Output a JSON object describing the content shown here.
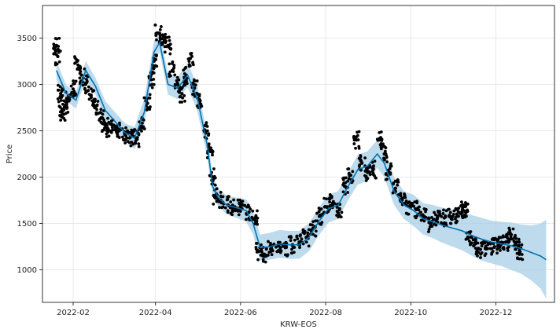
{
  "chart_data": {
    "type": "line",
    "xlabel": "KRW-EOS",
    "ylabel": "Price",
    "xlim": [
      "2022-01-10",
      "2023-01-12"
    ],
    "ylim": [
      650,
      3850
    ],
    "x_ticks": [
      "2022-02",
      "2022-04",
      "2022-06",
      "2022-08",
      "2022-10",
      "2022-12"
    ],
    "y_ticks": [
      1000,
      1500,
      2000,
      2500,
      3000,
      3500
    ],
    "grid": true,
    "colors": {
      "actual": "#000000",
      "forecast": "#0072B2",
      "interval": "#a7cfe6"
    },
    "series": [
      {
        "role": "forecast",
        "x": [
          "2022-01-20",
          "2022-01-27",
          "2022-02-03",
          "2022-02-10",
          "2022-02-17",
          "2022-02-24",
          "2022-03-03",
          "2022-03-10",
          "2022-03-17",
          "2022-03-24",
          "2022-03-31",
          "2022-04-04",
          "2022-04-10",
          "2022-04-17",
          "2022-04-24",
          "2022-05-01",
          "2022-05-08",
          "2022-05-12",
          "2022-05-16",
          "2022-05-22",
          "2022-05-29",
          "2022-06-05",
          "2022-06-10",
          "2022-06-15",
          "2022-06-22",
          "2022-06-29",
          "2022-07-06",
          "2022-07-13",
          "2022-07-20",
          "2022-07-27",
          "2022-08-03",
          "2022-08-10",
          "2022-08-17",
          "2022-08-24",
          "2022-08-31",
          "2022-09-07",
          "2022-09-12",
          "2022-09-19",
          "2022-09-26",
          "2022-10-03",
          "2022-10-10",
          "2022-10-17",
          "2022-10-24",
          "2022-10-31",
          "2022-11-07",
          "2022-11-14",
          "2022-11-21",
          "2022-11-28",
          "2022-12-05",
          "2022-12-12",
          "2022-12-19",
          "2022-12-26",
          "2023-01-02",
          "2023-01-06"
        ],
        "y": [
          3150,
          2900,
          2830,
          3150,
          2980,
          2720,
          2600,
          2480,
          2420,
          2700,
          3350,
          3450,
          3000,
          2960,
          3100,
          2850,
          2350,
          1900,
          1780,
          1700,
          1670,
          1640,
          1500,
          1240,
          1250,
          1280,
          1270,
          1270,
          1350,
          1520,
          1660,
          1700,
          1900,
          2080,
          2120,
          2250,
          2150,
          1850,
          1700,
          1640,
          1550,
          1520,
          1480,
          1450,
          1420,
          1370,
          1330,
          1300,
          1280,
          1260,
          1230,
          1190,
          1150,
          1110
        ],
        "lower": [
          3050,
          2820,
          2740,
          3060,
          2890,
          2620,
          2500,
          2380,
          2300,
          2560,
          3230,
          3350,
          2890,
          2840,
          2970,
          2710,
          2230,
          1790,
          1680,
          1600,
          1560,
          1520,
          1380,
          1100,
          1110,
          1130,
          1120,
          1120,
          1200,
          1370,
          1510,
          1550,
          1750,
          1920,
          1960,
          2100,
          2000,
          1700,
          1550,
          1470,
          1380,
          1340,
          1290,
          1250,
          1210,
          1150,
          1100,
          1070,
          1040,
          1000,
          960,
          890,
          800,
          690
        ],
        "upper": [
          3250,
          2990,
          2920,
          3250,
          3070,
          2820,
          2700,
          2580,
          2540,
          2850,
          3470,
          3560,
          3110,
          3080,
          3230,
          2990,
          2470,
          2010,
          1880,
          1800,
          1780,
          1760,
          1620,
          1380,
          1400,
          1430,
          1420,
          1420,
          1500,
          1670,
          1810,
          1850,
          2050,
          2240,
          2280,
          2400,
          2300,
          2000,
          1850,
          1810,
          1720,
          1700,
          1670,
          1650,
          1630,
          1590,
          1560,
          1530,
          1520,
          1510,
          1490,
          1480,
          1500,
          1540
        ]
      },
      {
        "role": "actual",
        "x": [
          "2022-01-20",
          "2022-01-21",
          "2022-01-23",
          "2022-01-24",
          "2022-01-26",
          "2022-01-28",
          "2022-02-01",
          "2022-02-04",
          "2022-02-07",
          "2022-02-10",
          "2022-02-14",
          "2022-02-17",
          "2022-02-21",
          "2022-02-24",
          "2022-02-27",
          "2022-03-02",
          "2022-03-06",
          "2022-03-10",
          "2022-03-14",
          "2022-03-18",
          "2022-03-22",
          "2022-03-26",
          "2022-03-29",
          "2022-03-31",
          "2022-04-03",
          "2022-04-06",
          "2022-04-10",
          "2022-04-13",
          "2022-04-17",
          "2022-04-20",
          "2022-04-23",
          "2022-04-26",
          "2022-04-29",
          "2022-05-03",
          "2022-05-07",
          "2022-05-10",
          "2022-05-12",
          "2022-05-14",
          "2022-05-18",
          "2022-05-23",
          "2022-05-28",
          "2022-06-02",
          "2022-06-07",
          "2022-06-11",
          "2022-06-14",
          "2022-06-18",
          "2022-06-23",
          "2022-06-28",
          "2022-07-03",
          "2022-07-08",
          "2022-07-13",
          "2022-07-18",
          "2022-07-23",
          "2022-07-28",
          "2022-08-02",
          "2022-08-06",
          "2022-08-11",
          "2022-08-15",
          "2022-08-19",
          "2022-08-23",
          "2022-08-27",
          "2022-08-31",
          "2022-09-04",
          "2022-09-09",
          "2022-09-12",
          "2022-09-15",
          "2022-09-20",
          "2022-09-25",
          "2022-09-30",
          "2022-10-05",
          "2022-10-10",
          "2022-10-15",
          "2022-10-20",
          "2022-10-25",
          "2022-10-30",
          "2022-11-03",
          "2022-11-07",
          "2022-11-09",
          "2022-11-11",
          "2022-11-15",
          "2022-11-20",
          "2022-11-25",
          "2022-11-30",
          "2022-12-04",
          "2022-12-08",
          "2022-12-12",
          "2022-12-16",
          "2022-12-18"
        ],
        "y": [
          3420,
          3300,
          2900,
          2700,
          2760,
          2830,
          2950,
          3250,
          3100,
          3000,
          2860,
          2760,
          2640,
          2560,
          2500,
          2560,
          2500,
          2460,
          2430,
          2420,
          2550,
          2800,
          3050,
          3250,
          3550,
          3450,
          3420,
          3150,
          3000,
          2900,
          3100,
          3280,
          2960,
          2820,
          2500,
          2300,
          2000,
          1800,
          1750,
          1700,
          1680,
          1660,
          1620,
          1550,
          1200,
          1170,
          1230,
          1260,
          1240,
          1270,
          1300,
          1350,
          1450,
          1580,
          1680,
          1720,
          1660,
          1900,
          2020,
          2400,
          2150,
          2050,
          2080,
          2400,
          2250,
          2060,
          1880,
          1770,
          1680,
          1650,
          1580,
          1500,
          1550,
          1560,
          1570,
          1600,
          1650,
          1630,
          1350,
          1260,
          1220,
          1230,
          1250,
          1260,
          1300,
          1380,
          1300,
          1190
        ]
      }
    ]
  }
}
